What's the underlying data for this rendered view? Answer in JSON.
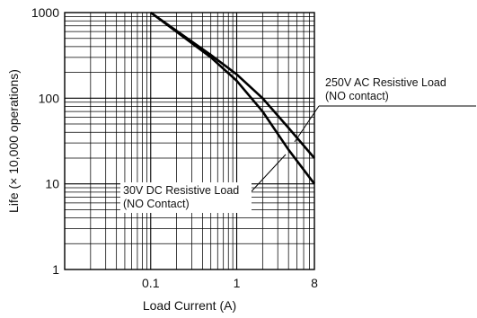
{
  "chart_data": {
    "type": "line",
    "title": "",
    "xlabel": "Load Current (A)",
    "ylabel": "Life (× 10,000 operations)",
    "x_scale": "log",
    "y_scale": "log",
    "xlim": [
      0.01,
      8
    ],
    "ylim": [
      1,
      1000
    ],
    "grid": true,
    "x_tick_labels": [
      "0.1",
      "1",
      "8"
    ],
    "x_tick_values": [
      0.1,
      1,
      8
    ],
    "y_tick_labels": [
      "1",
      "10",
      "100",
      "1000"
    ],
    "y_tick_values": [
      1,
      10,
      100,
      1000
    ],
    "series": [
      {
        "name": "250V AC Resistive Load (NO contact)",
        "x": [
          0.1,
          0.5,
          1,
          2,
          4,
          8
        ],
        "y": [
          1000,
          320,
          190,
          100,
          45,
          20
        ]
      },
      {
        "name": "30V DC Resistive Load (NO Contact)",
        "x": [
          0.1,
          0.5,
          1,
          2,
          4,
          8
        ],
        "y": [
          1000,
          300,
          160,
          70,
          25,
          10
        ]
      }
    ],
    "annotations": [
      {
        "lines": [
          "250V AC Resistive Load",
          "(NO contact)"
        ]
      },
      {
        "lines": [
          "30V DC Resistive Load",
          "(NO Contact)"
        ]
      }
    ]
  }
}
